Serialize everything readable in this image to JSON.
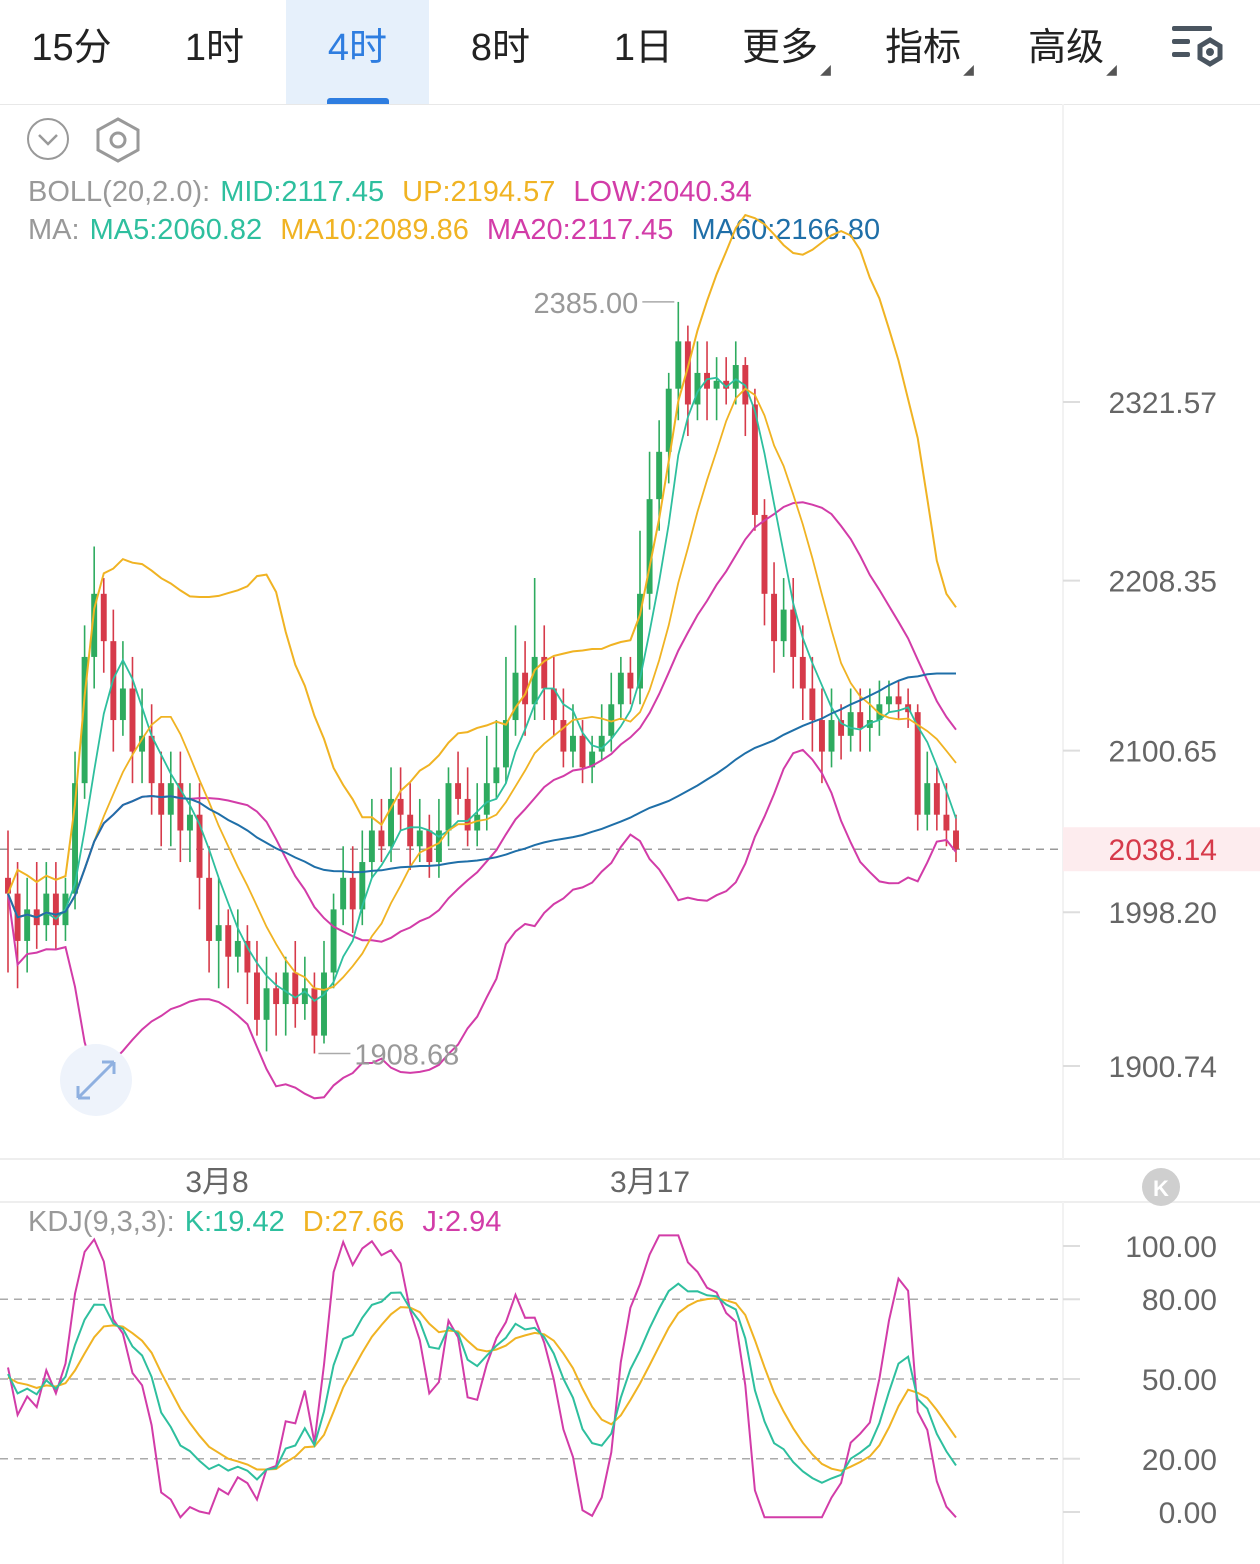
{
  "tabs": [
    {
      "label": "15分",
      "active": false,
      "dropdown": false
    },
    {
      "label": "1时",
      "active": false,
      "dropdown": false
    },
    {
      "label": "4时",
      "active": true,
      "dropdown": false
    },
    {
      "label": "8时",
      "active": false,
      "dropdown": false
    },
    {
      "label": "1日",
      "active": false,
      "dropdown": false
    },
    {
      "label": "更多",
      "active": false,
      "dropdown": true
    },
    {
      "label": "指标",
      "active": false,
      "dropdown": true
    },
    {
      "label": "高级",
      "active": false,
      "dropdown": true
    }
  ],
  "toolbar_icons": [
    "collapse-chevron-icon",
    "hexagon-settings-icon",
    "chart-settings-icon",
    "expand-arrows-icon",
    "rewind-icon"
  ],
  "colors": {
    "up": "#2eab5f",
    "down": "#d63a4a",
    "mid": "#d23ca8",
    "upper": "#f0b323",
    "lower": "#d23ca8",
    "ma5": "#2ebf9e",
    "ma10": "#f0b323",
    "ma20": "#d23ca8",
    "ma60": "#1f6fa8",
    "k": "#2ebf9e",
    "d": "#f0b323",
    "j": "#d23ca8",
    "accent": "#2e7de0",
    "last_price": "#d63a4a"
  },
  "boll": {
    "label": "BOLL(20,2.0):",
    "mid": "MID:2117.45",
    "up": "UP:2194.57",
    "low": "LOW:2040.34"
  },
  "ma": {
    "label": "MA:",
    "ma5": "MA5:2060.82",
    "ma10": "MA10:2089.86",
    "ma20": "MA20:2117.45",
    "ma60": "MA60:2166.80"
  },
  "kdj": {
    "label": "KDJ(9,3,3):",
    "k": "K:19.42",
    "d": "D:27.66",
    "j": "J:2.94"
  },
  "price_axis": {
    "ticks": [
      "2321.57",
      "2208.35",
      "2100.65",
      "1998.20",
      "1900.74"
    ],
    "last_price": "2038.14"
  },
  "kdj_axis": {
    "ticks": [
      "100.00",
      "80.00",
      "50.00",
      "20.00",
      "0.00"
    ]
  },
  "markers": {
    "high": "2385.00",
    "low": "1908.68"
  },
  "x_labels": [
    "3月8",
    "3月17"
  ],
  "chart_data": {
    "type": "candlestick",
    "y_ticks": [
      2321.57,
      2208.35,
      2100.65,
      1998.2,
      1900.74
    ],
    "last_price": 2038.14,
    "high_marker": 2385.0,
    "low_marker": 1908.68,
    "x_labels": [
      "3月8",
      "3月17"
    ],
    "candles": [
      [
        2020,
        2010,
        2050,
        1960
      ],
      [
        2010,
        1980,
        2030,
        1950
      ],
      [
        1980,
        2000,
        2020,
        1960
      ],
      [
        2000,
        1990,
        2030,
        1975
      ],
      [
        1990,
        2010,
        2030,
        1980
      ],
      [
        2010,
        1990,
        2030,
        1975
      ],
      [
        1990,
        2010,
        2020,
        1980
      ],
      [
        2010,
        2080,
        2100,
        2000
      ],
      [
        2080,
        2160,
        2180,
        2070
      ],
      [
        2160,
        2200,
        2230,
        2140
      ],
      [
        2200,
        2170,
        2210,
        2150
      ],
      [
        2170,
        2120,
        2190,
        2100
      ],
      [
        2120,
        2140,
        2170,
        2110
      ],
      [
        2140,
        2100,
        2160,
        2080
      ],
      [
        2100,
        2110,
        2140,
        2080
      ],
      [
        2110,
        2080,
        2130,
        2060
      ],
      [
        2080,
        2060,
        2100,
        2040
      ],
      [
        2060,
        2080,
        2100,
        2040
      ],
      [
        2080,
        2050,
        2100,
        2030
      ],
      [
        2050,
        2060,
        2080,
        2030
      ],
      [
        2060,
        2020,
        2080,
        2000
      ],
      [
        2020,
        1980,
        2040,
        1960
      ],
      [
        1980,
        1990,
        2020,
        1950
      ],
      [
        1990,
        1970,
        2000,
        1950
      ],
      [
        1970,
        1980,
        2000,
        1960
      ],
      [
        1980,
        1960,
        1990,
        1940
      ],
      [
        1960,
        1930,
        1980,
        1920
      ],
      [
        1930,
        1950,
        1970,
        1910
      ],
      [
        1950,
        1940,
        1960,
        1920
      ],
      [
        1940,
        1960,
        1970,
        1920
      ],
      [
        1960,
        1940,
        1980,
        1925
      ],
      [
        1940,
        1950,
        1970,
        1930
      ],
      [
        1950,
        1920,
        1960,
        1908.68
      ],
      [
        1920,
        1960,
        1980,
        1915
      ],
      [
        1960,
        2000,
        2010,
        1950
      ],
      [
        2000,
        2020,
        2040,
        1990
      ],
      [
        2020,
        2000,
        2040,
        1985
      ],
      [
        2000,
        2030,
        2050,
        1990
      ],
      [
        2030,
        2050,
        2070,
        2020
      ],
      [
        2050,
        2040,
        2070,
        2030
      ],
      [
        2040,
        2070,
        2090,
        2030
      ],
      [
        2070,
        2060,
        2090,
        2050
      ],
      [
        2060,
        2040,
        2080,
        2025
      ],
      [
        2040,
        2050,
        2070,
        2030
      ],
      [
        2050,
        2030,
        2060,
        2020
      ],
      [
        2030,
        2050,
        2070,
        2020
      ],
      [
        2050,
        2080,
        2090,
        2040
      ],
      [
        2080,
        2070,
        2100,
        2060
      ],
      [
        2070,
        2050,
        2090,
        2040
      ],
      [
        2050,
        2060,
        2080,
        2040
      ],
      [
        2060,
        2080,
        2110,
        2050
      ],
      [
        2080,
        2090,
        2120,
        2070
      ],
      [
        2090,
        2120,
        2160,
        2080
      ],
      [
        2120,
        2150,
        2180,
        2110
      ],
      [
        2150,
        2130,
        2170,
        2110
      ],
      [
        2130,
        2160,
        2210,
        2120
      ],
      [
        2160,
        2140,
        2180,
        2120
      ],
      [
        2140,
        2120,
        2160,
        2110
      ],
      [
        2120,
        2100,
        2140,
        2090
      ],
      [
        2100,
        2110,
        2130,
        2090
      ],
      [
        2110,
        2090,
        2120,
        2080
      ],
      [
        2090,
        2100,
        2110,
        2080
      ],
      [
        2100,
        2110,
        2130,
        2095
      ],
      [
        2110,
        2130,
        2150,
        2100
      ],
      [
        2130,
        2150,
        2160,
        2120
      ],
      [
        2150,
        2140,
        2160,
        2130
      ],
      [
        2140,
        2200,
        2240,
        2130
      ],
      [
        2200,
        2260,
        2290,
        2190
      ],
      [
        2260,
        2290,
        2310,
        2240
      ],
      [
        2290,
        2330,
        2340,
        2270
      ],
      [
        2330,
        2360,
        2385,
        2310
      ],
      [
        2360,
        2320,
        2370,
        2300
      ],
      [
        2320,
        2340,
        2360,
        2310
      ],
      [
        2340,
        2330,
        2360,
        2310
      ],
      [
        2330,
        2335,
        2350,
        2310
      ],
      [
        2335,
        2330,
        2350,
        2320
      ],
      [
        2330,
        2345,
        2360,
        2320
      ],
      [
        2345,
        2320,
        2350,
        2300
      ],
      [
        2320,
        2250,
        2330,
        2240
      ],
      [
        2250,
        2200,
        2260,
        2180
      ],
      [
        2200,
        2170,
        2220,
        2150
      ],
      [
        2170,
        2190,
        2210,
        2160
      ],
      [
        2190,
        2160,
        2210,
        2140
      ],
      [
        2160,
        2140,
        2180,
        2120
      ],
      [
        2140,
        2120,
        2160,
        2100
      ],
      [
        2120,
        2100,
        2140,
        2080
      ],
      [
        2100,
        2120,
        2140,
        2090
      ],
      [
        2120,
        2110,
        2130,
        2095
      ],
      [
        2110,
        2125,
        2140,
        2100
      ],
      [
        2125,
        2115,
        2140,
        2100
      ],
      [
        2115,
        2120,
        2140,
        2100
      ],
      [
        2120,
        2130,
        2145,
        2110
      ],
      [
        2130,
        2135,
        2145,
        2125
      ],
      [
        2135,
        2130,
        2145,
        2120
      ],
      [
        2130,
        2125,
        2140,
        2115
      ],
      [
        2125,
        2060,
        2130,
        2050
      ],
      [
        2060,
        2080,
        2100,
        2050
      ],
      [
        2080,
        2060,
        2090,
        2050
      ],
      [
        2060,
        2050,
        2080,
        2040
      ],
      [
        2050,
        2038.14,
        2060,
        2030
      ]
    ],
    "boll": {
      "mid": 2117.45,
      "up": 2194.57,
      "low": 2040.34
    },
    "ma": {
      "ma5": 2060.82,
      "ma10": 2089.86,
      "ma20": 2117.45,
      "ma60": 2166.8
    },
    "kdj": {
      "k": 19.42,
      "d": 27.66,
      "j": 2.94,
      "y_ticks": [
        100,
        80,
        50,
        20,
        0
      ]
    }
  }
}
